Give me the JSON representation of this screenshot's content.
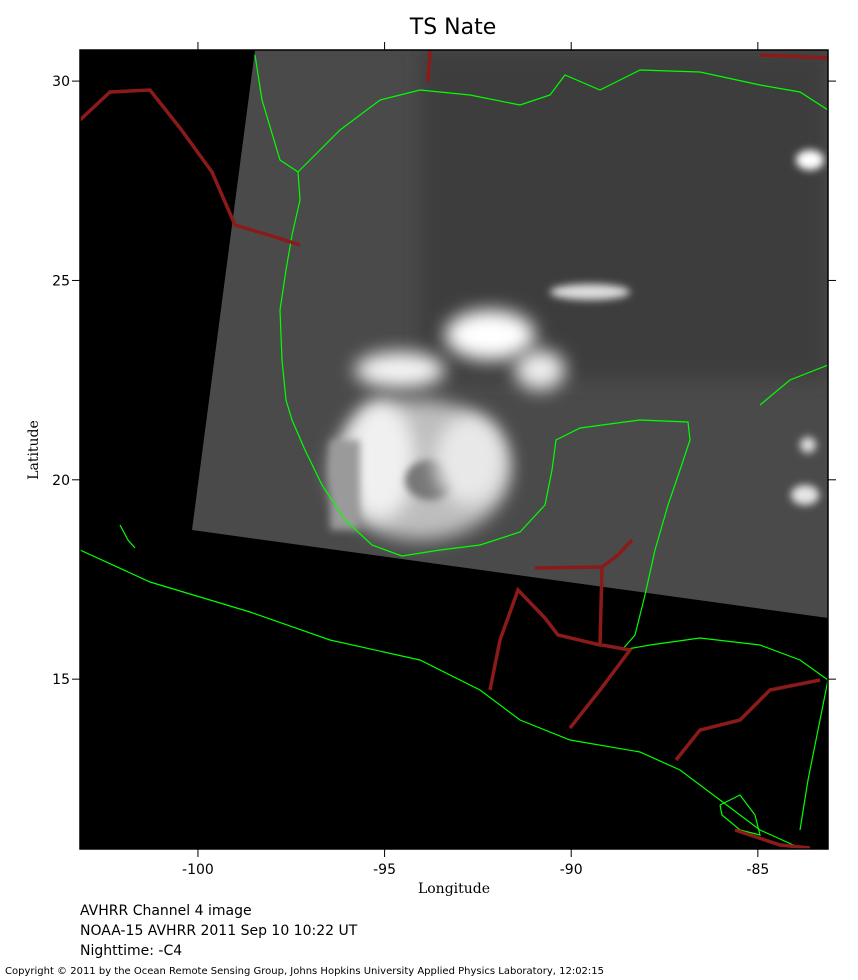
{
  "map": {
    "title": "TS Nate",
    "x_label": "Longitude",
    "y_label": "Latitude",
    "xlim": [
      -103.16,
      -83.12
    ],
    "ylim": [
      10.74,
      30.78
    ],
    "xticks": [
      -100,
      -95,
      -90,
      -85
    ],
    "yticks": [
      15,
      20,
      25,
      30
    ],
    "captions": [
      "AVHRR Channel 4 image",
      "NOAA-15 AVHRR 2011 Sep 10 10:22 UT",
      "Nighttime: -C4"
    ],
    "copyright": "Copyright © 2011 by the Ocean Remote Sensing Group, Johns Hopkins University Applied Physics Laboratory, 12:02:15"
  }
}
